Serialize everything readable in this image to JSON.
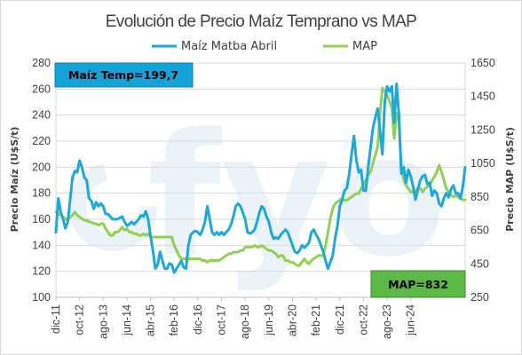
{
  "chart_data": {
    "type": "line",
    "title": "Evolución de Precio Maíz Temprano vs MAP",
    "ylabel_left": "Precio Maíz (U$S/t)",
    "ylabel_right": "Precio MAP (U$S/t)",
    "ylim_left": [
      100,
      280
    ],
    "ylim_right": [
      250,
      1650
    ],
    "yticks_left": [
      "100",
      "120",
      "140",
      "160",
      "180",
      "200",
      "220",
      "240",
      "260",
      "280"
    ],
    "yticks_right": [
      "250",
      "450",
      "650",
      "850",
      "1050",
      "1250",
      "1450",
      "1650"
    ],
    "xticks": [
      "dic-11",
      "oct-12",
      "ago-13",
      "jun-14",
      "abr-15",
      "feb-16",
      "dic-16",
      "oct-17",
      "ago-18",
      "jun-19",
      "abr-20",
      "feb-21",
      "dic-21",
      "oct-22",
      "ago-23",
      "jun-24"
    ],
    "grid": true,
    "legend_position": "top",
    "annotations": {
      "maiz": "Maíz Temp=199,7",
      "map": "MAP=832"
    },
    "colors": {
      "maiz": "#1ba7e0",
      "map": "#92d050",
      "maiz_box": "#14a3d8",
      "map_box": "#5cb945",
      "watermark": "#e8f1f8"
    },
    "x_start": "dic-11",
    "x_step": "1 month",
    "series": [
      {
        "name": "Maíz Matba Abril",
        "axis": "left",
        "values": [
          150,
          176,
          166,
          160,
          153,
          158,
          175,
          192,
          197,
          196,
          205,
          200,
          192,
          190,
          176,
          174,
          168,
          173,
          170,
          172,
          170,
          164,
          164,
          162,
          160,
          160,
          160,
          161,
          162,
          158,
          155,
          156,
          158,
          156,
          158,
          160,
          163,
          162,
          166,
          160,
          147,
          136,
          122,
          125,
          135,
          128,
          122,
          122,
          126,
          125,
          119,
          122,
          125,
          128,
          123,
          122,
          140,
          148,
          150,
          151,
          150,
          148,
          152,
          158,
          170,
          160,
          150,
          148,
          150,
          148,
          150,
          148,
          150,
          152,
          156,
          162,
          170,
          172,
          170,
          165,
          160,
          150,
          149,
          150,
          152,
          158,
          165,
          170,
          168,
          162,
          158,
          150,
          145,
          146,
          145,
          148,
          150,
          152,
          150,
          145,
          140,
          135,
          134,
          136,
          140,
          138,
          140,
          142,
          150,
          152,
          148,
          145,
          140,
          135,
          128,
          122,
          127,
          132,
          145,
          155,
          170,
          175,
          182,
          184,
          195,
          210,
          224,
          205,
          196,
          198,
          182,
          182,
          200,
          215,
          230,
          238,
          245,
          228,
          210,
          250,
          262,
          258,
          262,
          234,
          264,
          240,
          195,
          200,
          188,
          198,
          193,
          185,
          175,
          183,
          190,
          193,
          194,
          187,
          188,
          178,
          182,
          180,
          172,
          170,
          176,
          180,
          177,
          183,
          186,
          180,
          180,
          176,
          185,
          200
        ],
        "last_value_label": "199,7"
      },
      {
        "name": "MAP",
        "axis": "right",
        "values": [
          760,
          750,
          740,
          730,
          720,
          710,
          730,
          740,
          760,
          740,
          730,
          720,
          710,
          710,
          700,
          700,
          690,
          690,
          680,
          690,
          690,
          660,
          640,
          620,
          620,
          640,
          640,
          650,
          670,
          650,
          660,
          640,
          640,
          630,
          630,
          620,
          620,
          630,
          620,
          630,
          610,
          610,
          610,
          610,
          610,
          610,
          610,
          610,
          610,
          610,
          560,
          530,
          500,
          480,
          480,
          480,
          480,
          480,
          480,
          480,
          480,
          480,
          470,
          470,
          460,
          470,
          470,
          470,
          470,
          470,
          480,
          490,
          500,
          510,
          510,
          520,
          520,
          520,
          530,
          530,
          550,
          550,
          550,
          550,
          560,
          550,
          550,
          560,
          550,
          540,
          530,
          530,
          520,
          510,
          490,
          500,
          500,
          470,
          470,
          460,
          460,
          450,
          440,
          440,
          460,
          480,
          460,
          450,
          470,
          480,
          490,
          500,
          500,
          500,
          560,
          640,
          720,
          780,
          810,
          820,
          830,
          840,
          830,
          830,
          840,
          850,
          860,
          870,
          870,
          900,
          920,
          950,
          980,
          1000,
          1050,
          1100,
          1150,
          1350,
          1500,
          1480,
          1460,
          1420,
          1380,
          1200,
          1350,
          1300,
          1020,
          950,
          920,
          900,
          880,
          880,
          890,
          900,
          900,
          880,
          900,
          910,
          920,
          950,
          970,
          1000,
          1040,
          1000,
          950,
          900,
          880,
          860,
          850,
          860,
          850,
          840,
          832,
          832
        ],
        "last_value_label": "832"
      }
    ]
  }
}
